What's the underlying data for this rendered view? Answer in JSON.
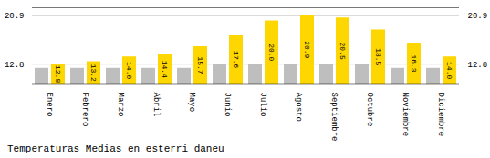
{
  "chart_data": {
    "type": "bar",
    "title": "Temperaturas Medias en esterri daneu",
    "categories": [
      "Enero",
      "Febrero",
      "Marzo",
      "Abril",
      "Mayo",
      "Junio",
      "Julio",
      "Agosto",
      "Septiembre",
      "Octubre",
      "Noviembre",
      "Diciembre"
    ],
    "series": [
      {
        "color": "#BEBEBE",
        "values": [
          12.1,
          12.1,
          12.1,
          12.1,
          12.1,
          12.8,
          12.8,
          12.8,
          12.8,
          12.8,
          12.1,
          12.1
        ]
      },
      {
        "color": "#FFD700",
        "values": [
          12.8,
          13.2,
          14.0,
          14.4,
          15.7,
          17.6,
          20.0,
          20.9,
          20.5,
          18.5,
          16.3,
          14.0
        ],
        "value_labels": [
          "12.8",
          "13.2",
          "14.0",
          "14.4",
          "15.7",
          "17.6",
          "20.0",
          "20.9",
          "20.5",
          "18.5",
          "16.3",
          "14.0"
        ],
        "data_labels": true
      }
    ],
    "ylim": [
      9.5,
      22.2
    ],
    "yticks": [
      12.8,
      20.9
    ],
    "grid": true
  }
}
